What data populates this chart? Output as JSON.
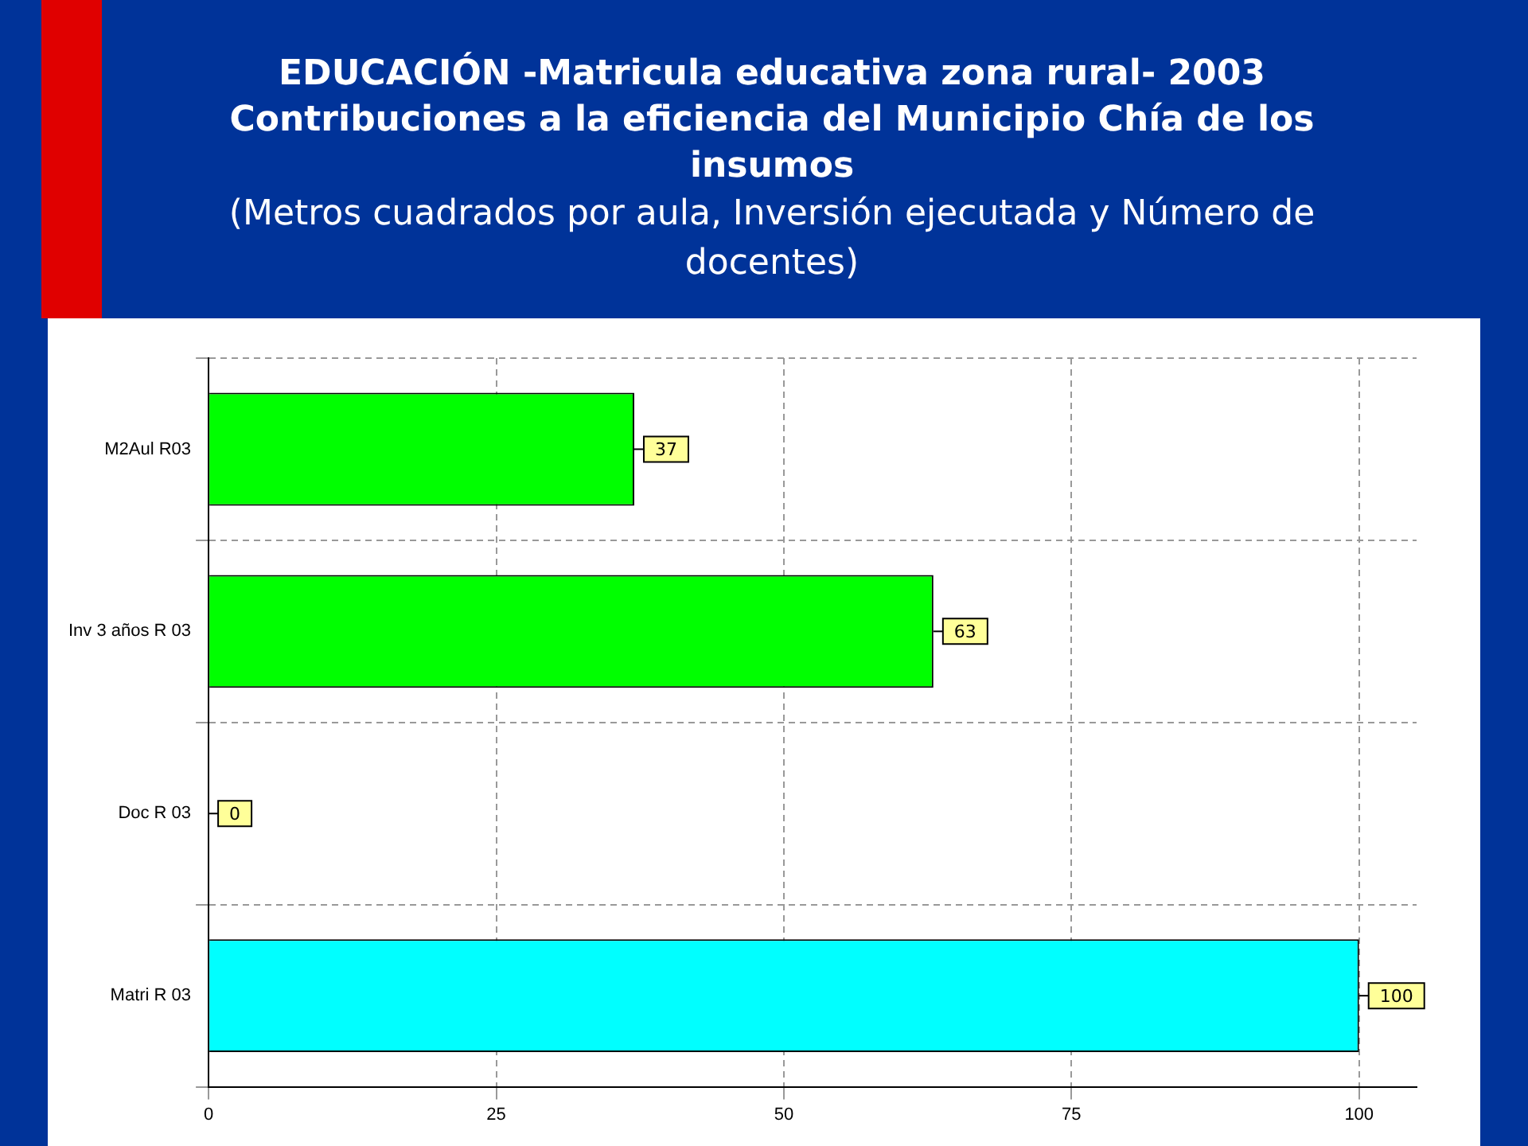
{
  "chart_data": {
    "type": "bar",
    "orientation": "horizontal",
    "title": "EDUCACIÓN -Matricula educativa zona rural- 2003 Contribuciones a la eficiencia del Municipio Chía de los insumos",
    "subtitle": "(Metros cuadrados por aula, Inversión ejecutada y Número de docentes)",
    "categories": [
      "M2Aul R03",
      "Inv 3 años R 03",
      "Doc R 03",
      "Matri R 03"
    ],
    "values": [
      37,
      63,
      0,
      100
    ],
    "colors": [
      "#00ff00",
      "#00ff00",
      "#00ff00",
      "#00ffff"
    ],
    "xlim": [
      0,
      105
    ],
    "xticks": [
      0,
      25,
      50,
      75,
      100
    ],
    "grid": true,
    "data_labels": true
  }
}
